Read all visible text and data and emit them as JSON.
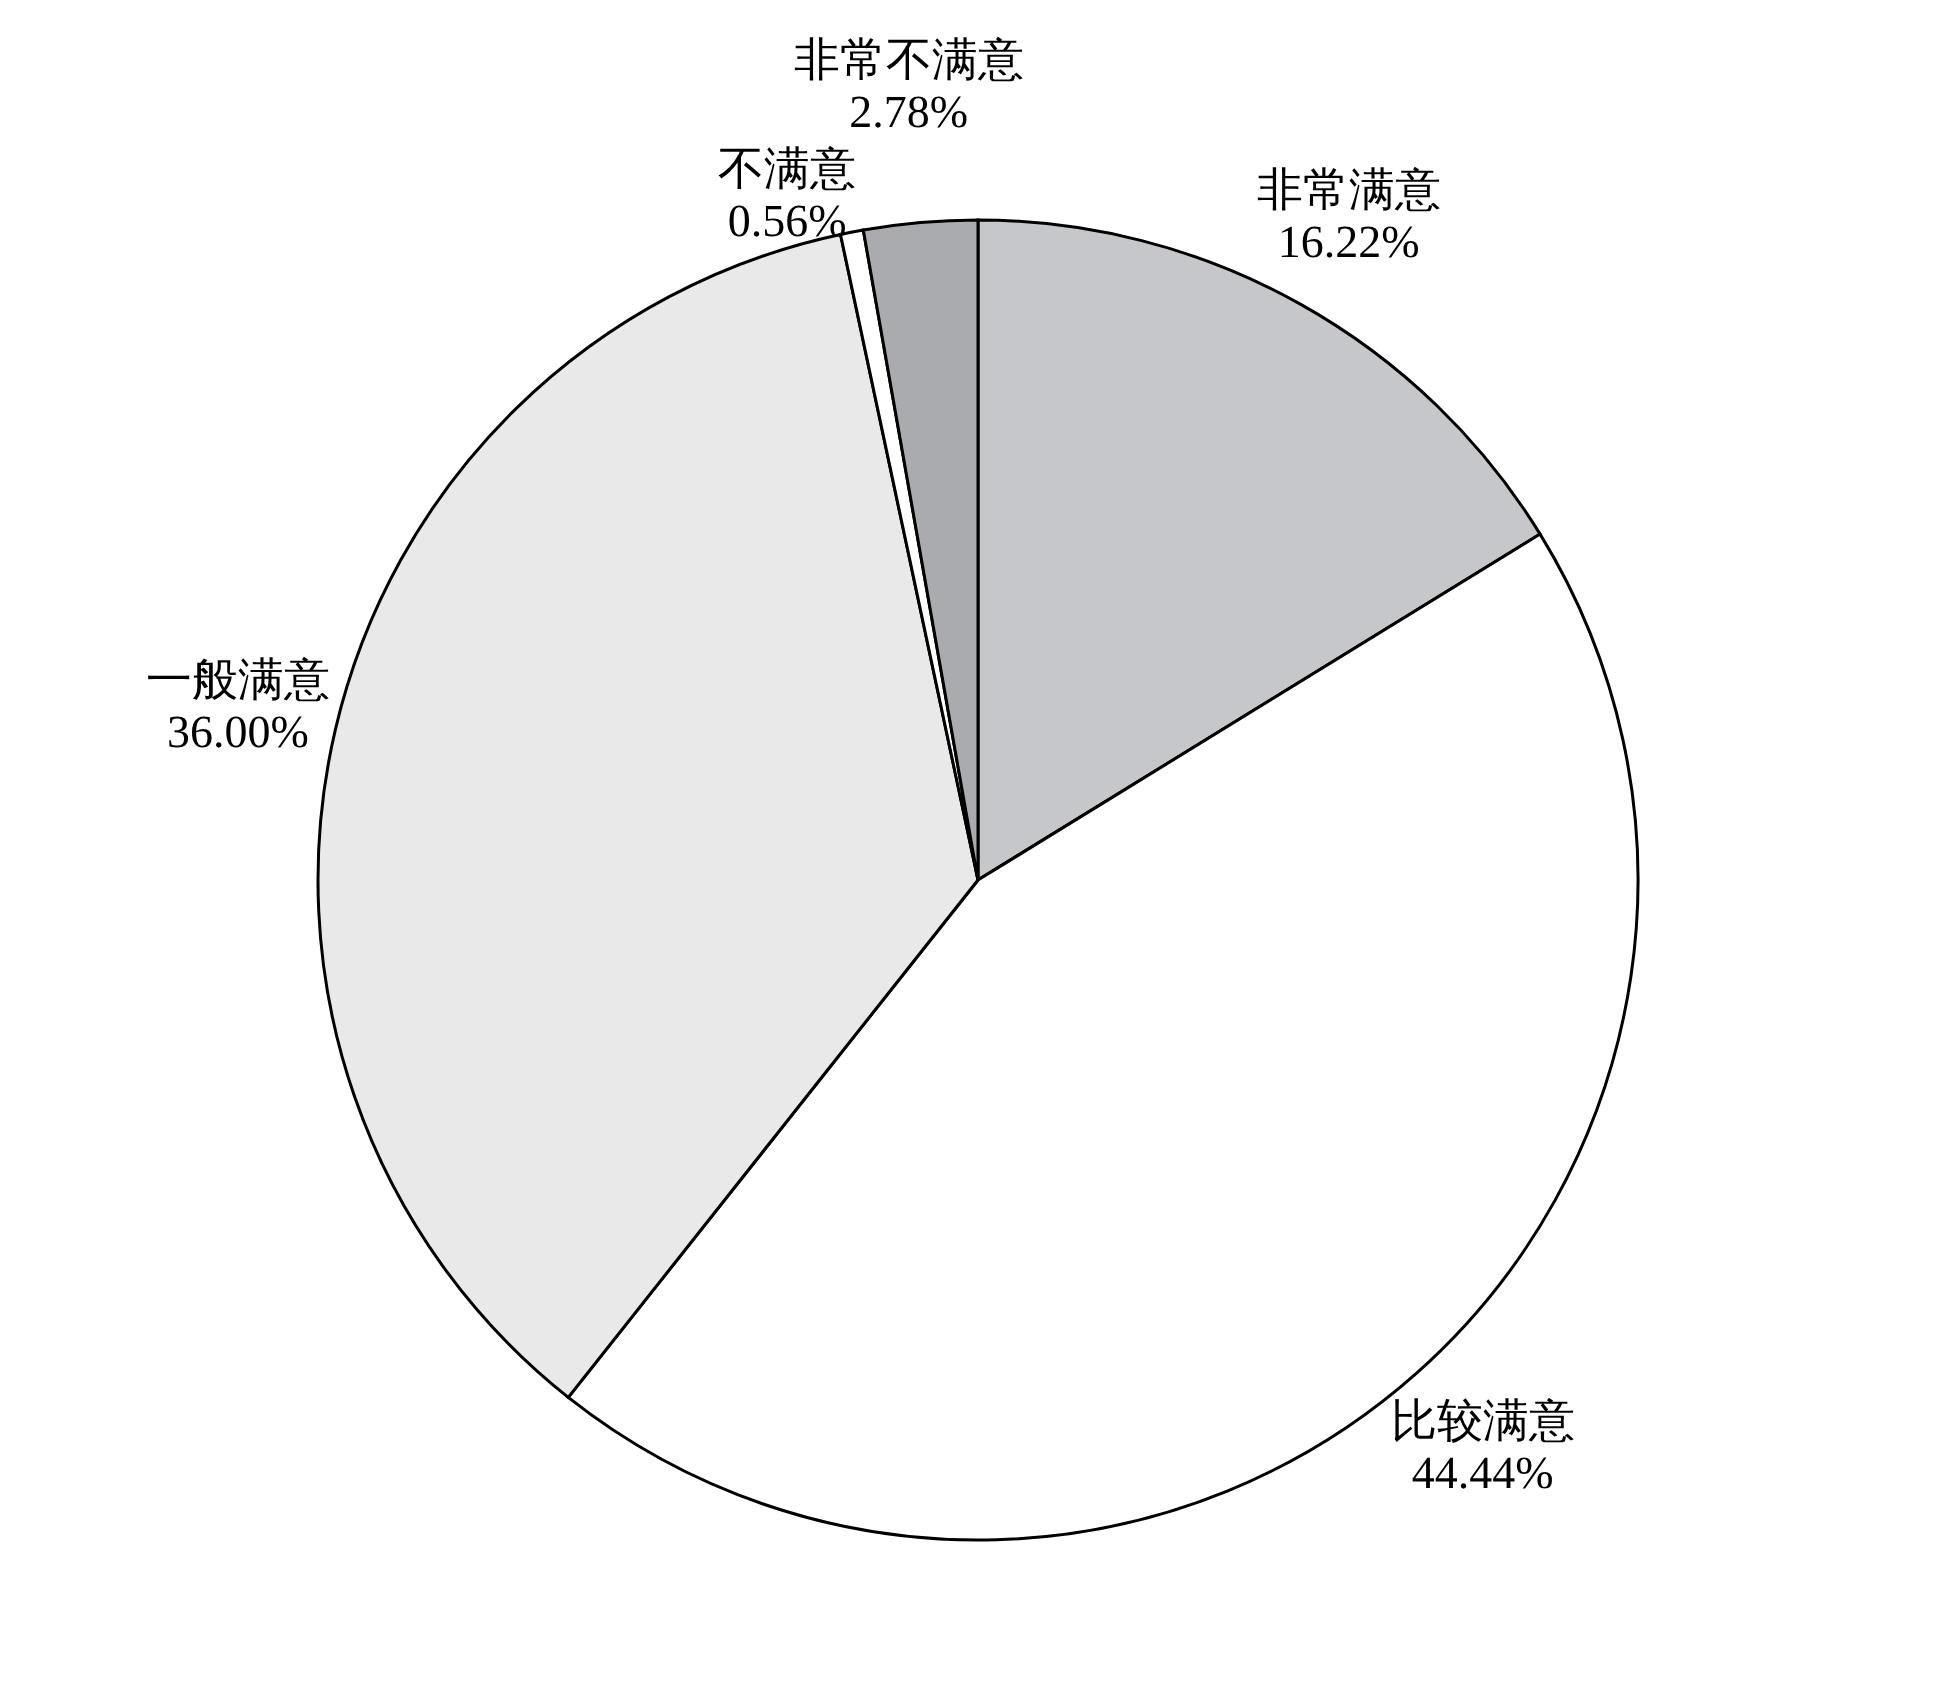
{
  "chart_data": {
    "type": "pie",
    "categories": [
      "非常满意",
      "比较满意",
      "一般满意",
      "不满意",
      "非常不满意"
    ],
    "values": [
      16.22,
      44.44,
      36.0,
      0.56,
      2.78
    ],
    "value_labels": [
      "16.22%",
      "44.44%",
      "36.00%",
      "0.56%",
      "2.78%"
    ],
    "colors": [
      "#c5c7ca",
      "#ffffff",
      "#e9e9e9",
      "#ffffff",
      "#a9abae"
    ],
    "legend": false
  }
}
